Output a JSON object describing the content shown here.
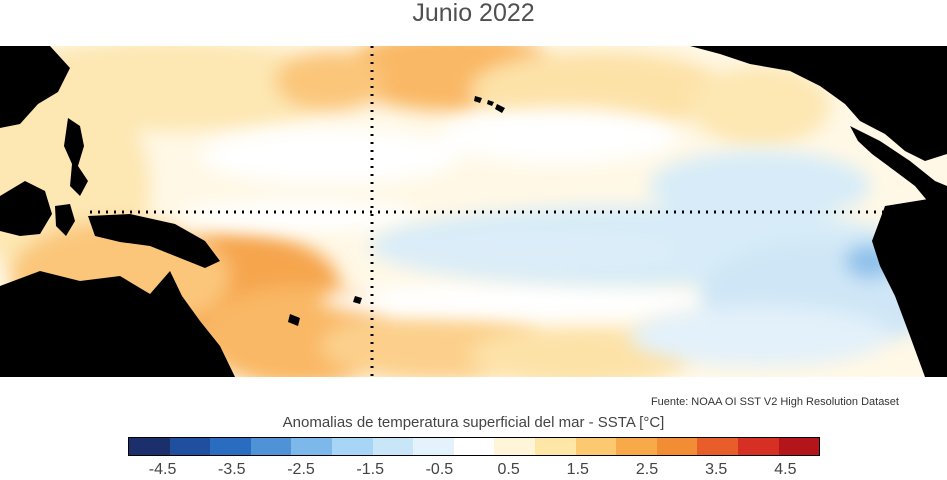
{
  "title": "Junio 2022",
  "source": "Fuente: NOAA OI SST V2 High Resolution Dataset",
  "colorbar": {
    "title": "Anomalias de temperatura superficial del mar - SSTA  [°C]",
    "colors": [
      "#1a2f6b",
      "#1f4f9e",
      "#2a6cc0",
      "#4f93d6",
      "#7cb8ea",
      "#a7d5f5",
      "#c9e6f8",
      "#e4f3fb",
      "#ffffff",
      "#fff5d8",
      "#fee6a6",
      "#fcc870",
      "#f8a94a",
      "#f28d35",
      "#e85e2a",
      "#d62f24",
      "#b3151b"
    ],
    "ticks": [
      "-4.5",
      "-3.5",
      "-2.5",
      "-1.5",
      "-0.5",
      "0.5",
      "1.5",
      "2.5",
      "3.5",
      "4.5"
    ],
    "tick_values": [
      -4.5,
      -3.5,
      -2.5,
      -1.5,
      -0.5,
      0.5,
      1.5,
      2.5,
      3.5,
      4.5
    ],
    "range": [
      -5,
      5
    ]
  },
  "map": {
    "land_color": "#000000",
    "warm_color": "#f8a94a",
    "cool_color": "#a7d5f5"
  }
}
